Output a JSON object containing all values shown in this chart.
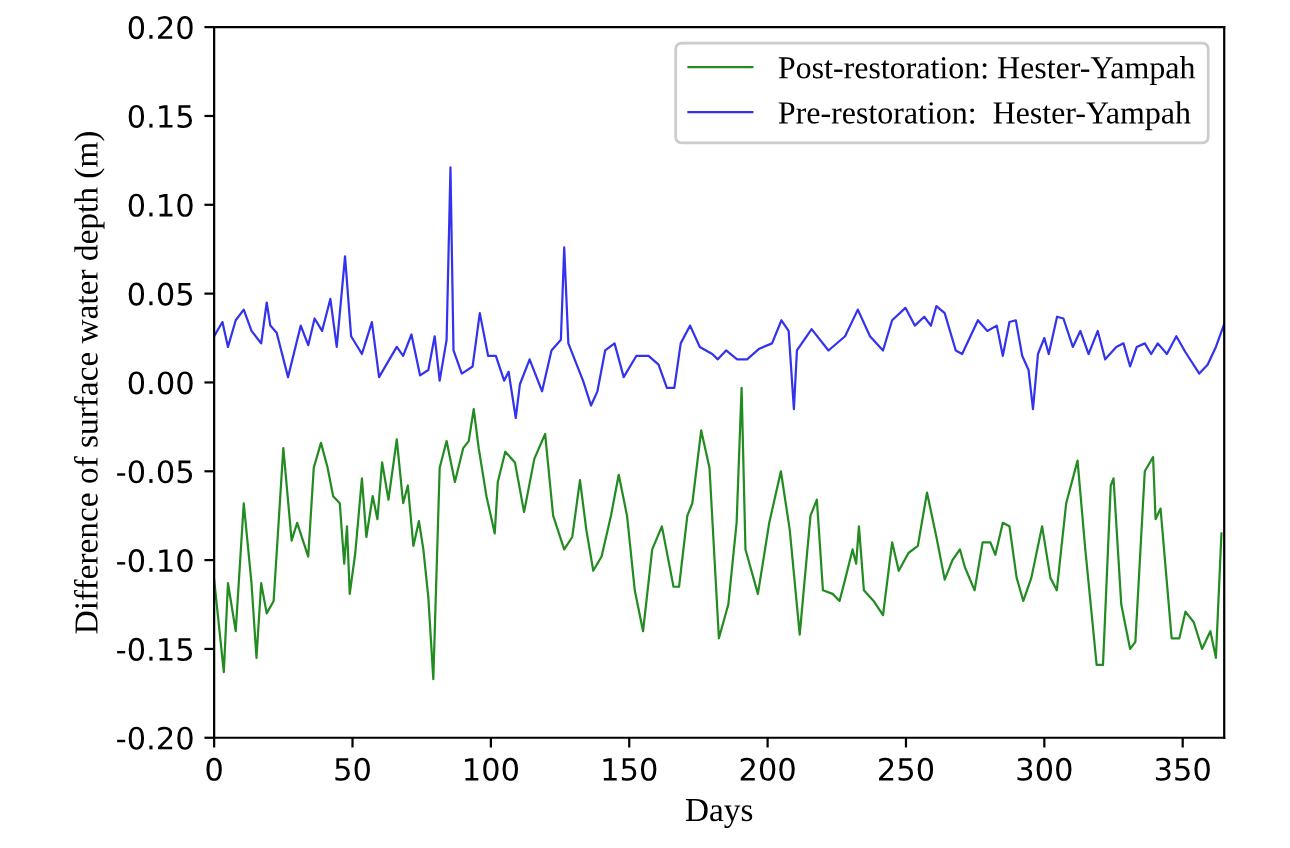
{
  "chart_data": {
    "type": "line",
    "xlabel": "Days",
    "ylabel": "Difference of surface water depth (m)",
    "xlim": [
      0,
      365
    ],
    "ylim": [
      -0.2,
      0.2
    ],
    "xticks": [
      0,
      50,
      100,
      150,
      200,
      250,
      300,
      350
    ],
    "yticks": [
      {
        "value": -0.2,
        "label": "-0.20"
      },
      {
        "value": -0.15,
        "label": "-0.15"
      },
      {
        "value": -0.1,
        "label": "-0.10"
      },
      {
        "value": -0.05,
        "label": "-0.05"
      },
      {
        "value": 0,
        "label": "0.00"
      },
      {
        "value": 0.05,
        "label": "0.05"
      },
      {
        "value": 0.1,
        "label": "0.10"
      },
      {
        "value": 0.15,
        "label": "0.15"
      },
      {
        "value": 0.2,
        "label": "0.20"
      }
    ],
    "grid": false,
    "legend": "top right",
    "marker": "none",
    "line_style": "solid",
    "series": [
      {
        "name": "Post-restoration: Hester-Yampah",
        "color": "#228b22",
        "x": [
          0,
          3.5,
          5,
          7.8,
          10.7,
          13.5,
          15.3,
          17,
          19,
          21.5,
          25,
          28,
          30,
          34,
          36,
          38.6,
          41,
          43,
          45.4,
          47,
          48,
          49,
          51,
          53.4,
          55,
          57.3,
          59,
          60.7,
          63,
          66,
          68.3,
          70,
          72,
          74,
          75.6,
          77.4,
          79.2,
          81.5,
          84,
          87,
          90,
          92,
          93.8,
          95.6,
          98.4,
          101.4,
          102.5,
          105.2,
          108.7,
          112,
          115.7,
          119.6,
          122.5,
          126.5,
          129.4,
          132.2,
          134.5,
          137,
          140,
          143.4,
          146.2,
          149.2,
          152,
          155,
          158.3,
          161.8,
          166,
          168,
          171,
          172.8,
          176,
          179,
          182.4,
          185.8,
          188.8,
          190.6,
          192,
          196.5,
          200.6,
          204.8,
          208,
          211.6,
          215.5,
          217.8,
          220,
          223.5,
          226,
          228,
          230.7,
          232,
          233,
          234.8,
          238.3,
          241.7,
          245,
          247.4,
          250.9,
          254.3,
          257.6,
          261,
          264,
          266.8,
          269.5,
          271.3,
          274.8,
          277.7,
          280.5,
          282.3,
          285,
          287.4,
          290,
          292.4,
          295.3,
          299.2,
          302.2,
          304.5,
          307.9,
          312,
          314.8,
          318.9,
          321.2,
          324,
          325,
          327.8,
          331,
          332.9,
          336.3,
          339.3,
          340.2,
          342,
          346,
          348.8,
          351,
          354,
          357,
          360,
          362,
          364
        ],
        "values": [
          -0.111,
          -0.163,
          -0.113,
          -0.14,
          -0.068,
          -0.113,
          -0.155,
          -0.113,
          -0.13,
          -0.123,
          -0.037,
          -0.089,
          -0.079,
          -0.098,
          -0.048,
          -0.034,
          -0.048,
          -0.064,
          -0.068,
          -0.102,
          -0.081,
          -0.119,
          -0.096,
          -0.054,
          -0.087,
          -0.064,
          -0.077,
          -0.045,
          -0.066,
          -0.032,
          -0.068,
          -0.058,
          -0.092,
          -0.078,
          -0.094,
          -0.121,
          -0.167,
          -0.048,
          -0.033,
          -0.056,
          -0.037,
          -0.033,
          -0.015,
          -0.037,
          -0.064,
          -0.085,
          -0.056,
          -0.039,
          -0.045,
          -0.073,
          -0.043,
          -0.029,
          -0.075,
          -0.094,
          -0.087,
          -0.055,
          -0.083,
          -0.106,
          -0.098,
          -0.075,
          -0.052,
          -0.075,
          -0.117,
          -0.14,
          -0.094,
          -0.081,
          -0.115,
          -0.115,
          -0.075,
          -0.068,
          -0.027,
          -0.048,
          -0.144,
          -0.125,
          -0.079,
          -0.003,
          -0.094,
          -0.119,
          -0.079,
          -0.05,
          -0.083,
          -0.142,
          -0.075,
          -0.066,
          -0.117,
          -0.119,
          -0.123,
          -0.111,
          -0.094,
          -0.102,
          -0.081,
          -0.117,
          -0.123,
          -0.131,
          -0.09,
          -0.106,
          -0.096,
          -0.092,
          -0.062,
          -0.087,
          -0.111,
          -0.1,
          -0.094,
          -0.104,
          -0.117,
          -0.09,
          -0.09,
          -0.097,
          -0.079,
          -0.081,
          -0.11,
          -0.123,
          -0.11,
          -0.081,
          -0.11,
          -0.117,
          -0.068,
          -0.044,
          -0.094,
          -0.159,
          -0.159,
          -0.058,
          -0.054,
          -0.125,
          -0.15,
          -0.146,
          -0.05,
          -0.042,
          -0.077,
          -0.071,
          -0.144,
          -0.144,
          -0.129,
          -0.135,
          -0.15,
          -0.14,
          -0.155,
          -0.085
        ]
      },
      {
        "name": "Pre-restoration:  Hester-Yampah",
        "color": "#3333ee",
        "x": [
          0,
          3,
          5,
          7.8,
          10.7,
          13.5,
          17,
          19,
          20.3,
          22.6,
          26.7,
          31.3,
          34,
          36.3,
          39,
          42,
          44.3,
          47.3,
          49.5,
          53.4,
          57,
          59.6,
          62.6,
          66,
          68.3,
          71.3,
          74.4,
          77.4,
          79.7,
          81.5,
          84,
          85.4,
          86.5,
          89.5,
          93.4,
          96,
          99,
          101.8,
          104.8,
          106.4,
          109,
          110.5,
          114,
          118.5,
          121.9,
          125.3,
          126.5,
          128,
          133.3,
          136.2,
          138.5,
          141.3,
          144.7,
          148,
          152.6,
          157,
          160.6,
          163.6,
          166.3,
          168.6,
          172,
          175.5,
          180,
          182,
          185,
          189,
          192.6,
          197,
          201.6,
          205,
          207.6,
          209.5,
          210.6,
          215.9,
          222,
          228,
          232.6,
          237,
          241.7,
          245,
          249.8,
          253.2,
          256.6,
          259,
          261,
          264,
          268,
          270.3,
          276,
          279.4,
          282.8,
          285,
          287.4,
          289.7,
          292,
          294.3,
          295.9,
          297.7,
          300,
          301.6,
          304.6,
          306.9,
          310.3,
          313,
          316,
          319.3,
          322,
          326,
          328.6,
          331,
          333.4,
          336.3,
          338.6,
          341,
          344.3,
          347.7,
          351,
          356,
          359,
          362,
          365
        ],
        "values": [
          0.026,
          0.034,
          0.02,
          0.035,
          0.041,
          0.029,
          0.022,
          0.045,
          0.032,
          0.028,
          0.003,
          0.032,
          0.021,
          0.036,
          0.029,
          0.047,
          0.02,
          0.071,
          0.026,
          0.016,
          0.034,
          0.003,
          0.011,
          0.02,
          0.015,
          0.027,
          0.004,
          0.007,
          0.026,
          0.001,
          0.024,
          0.121,
          0.018,
          0.005,
          0.009,
          0.039,
          0.015,
          0.015,
          0.001,
          0.006,
          -0.02,
          -0.001,
          0.013,
          -0.005,
          0.018,
          0.024,
          0.076,
          0.022,
          0.001,
          -0.013,
          -0.005,
          0.018,
          0.022,
          0.003,
          0.015,
          0.015,
          0.01,
          -0.003,
          -0.003,
          0.022,
          0.032,
          0.02,
          0.016,
          0.013,
          0.018,
          0.013,
          0.013,
          0.019,
          0.022,
          0.035,
          0.029,
          -0.015,
          0.018,
          0.03,
          0.018,
          0.026,
          0.041,
          0.026,
          0.018,
          0.035,
          0.042,
          0.032,
          0.037,
          0.032,
          0.043,
          0.039,
          0.018,
          0.016,
          0.035,
          0.029,
          0.032,
          0.015,
          0.034,
          0.035,
          0.015,
          0.007,
          -0.015,
          0.016,
          0.025,
          0.016,
          0.037,
          0.036,
          0.02,
          0.029,
          0.016,
          0.029,
          0.013,
          0.02,
          0.022,
          0.009,
          0.02,
          0.022,
          0.016,
          0.022,
          0.016,
          0.026,
          0.017,
          0.005,
          0.01,
          0.02,
          0.033
        ]
      }
    ]
  }
}
